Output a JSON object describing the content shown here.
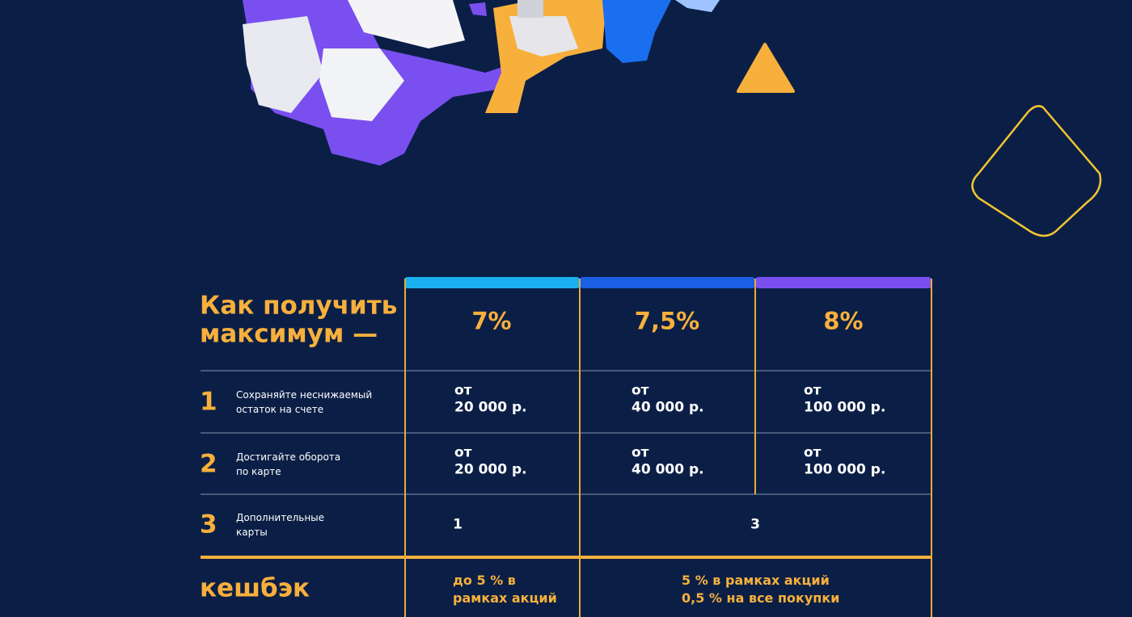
{
  "table": {
    "title": [
      "Как получить",
      "максимум —"
    ],
    "columns": [
      "7%",
      "7,5%",
      "8%"
    ],
    "rows": [
      {
        "number": "1",
        "label": [
          "Сохраняйте неснижаемый",
          "остаток на счете"
        ],
        "cells": [
          [
            "от",
            "20 000 р."
          ],
          [
            "от",
            "40 000 р."
          ],
          [
            "от",
            "100 000 р."
          ]
        ]
      },
      {
        "number": "2",
        "label": [
          "Достигайте оборота",
          "по карте"
        ],
        "cells": [
          [
            "от",
            "20 000 р."
          ],
          [
            "от",
            "40 000 р."
          ],
          [
            "от",
            "100 000 р."
          ]
        ]
      },
      {
        "number": "3",
        "label": [
          "Дополнительные",
          "карты"
        ],
        "cells": [
          "1",
          "3"
        ]
      }
    ],
    "footer": {
      "label": "кешбэк",
      "cells": [
        [
          "до 5 % в",
          "рамках акций"
        ],
        [
          "5 % в рамках акций",
          "0,5 % на все покупки"
        ]
      ]
    }
  }
}
